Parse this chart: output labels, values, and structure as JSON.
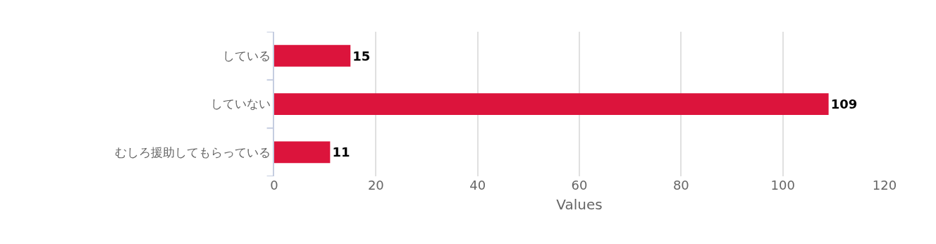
{
  "chart_data": {
    "type": "bar",
    "orientation": "horizontal",
    "xlabel": "Values",
    "categories": [
      "している",
      "していない",
      "むしろ援助してもらっている"
    ],
    "values": [
      15,
      109,
      11
    ],
    "color": "#dc143c",
    "xlim": [
      0,
      120
    ],
    "xticks": [
      0,
      20,
      40,
      60,
      80,
      100,
      120
    ],
    "grid": "x",
    "data_labels": true
  }
}
